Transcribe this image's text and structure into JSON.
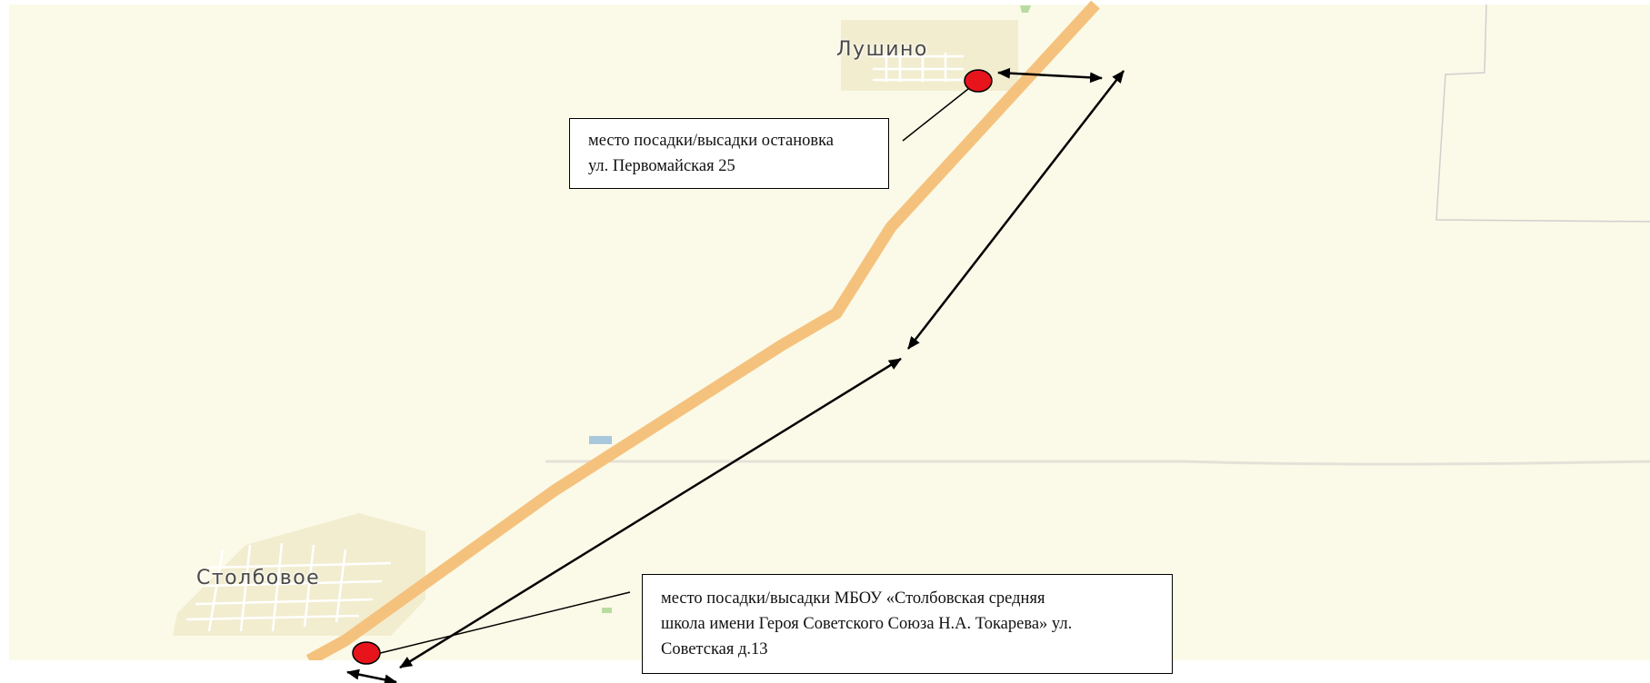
{
  "map": {
    "places": {
      "lushino": "Лушино",
      "stolbovoe": "Столбовое"
    },
    "callouts": {
      "top": {
        "lines": [
          "место посадки/высадки остановка",
          "ул. Первомайская 25"
        ]
      },
      "bottom": {
        "lines": [
          "место посадки/высадки МБОУ «Столбовская средняя",
          "школа имени Героя Советского Союза Н.А. Токарева» ул.",
          "Советская д.13"
        ]
      }
    },
    "colors": {
      "background": "#fbfae8",
      "road": "#f5c27e",
      "settlement": "#f2edcf",
      "marker": "#e8141c"
    }
  }
}
